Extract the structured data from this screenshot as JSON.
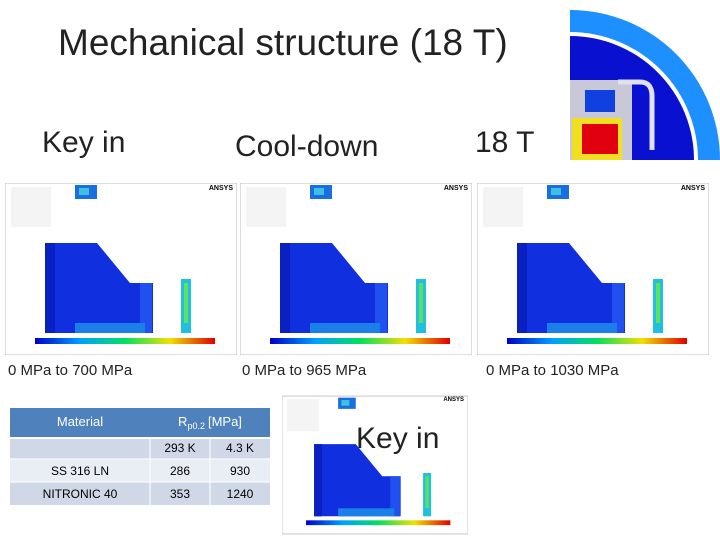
{
  "title": "Mechanical structure (18 T)",
  "stages": [
    {
      "label": "Key in",
      "range": "0 MPa to 700 MPa"
    },
    {
      "label": "Cool-down",
      "range": "0 MPa to 965 MPa"
    },
    {
      "label": "18 T",
      "range": "0 MPa to 1030 MPa"
    }
  ],
  "panel_logo": "ANSYS",
  "inset_label": "Key in",
  "table": {
    "header": {
      "material": "Material",
      "symbol": "R",
      "subscript": "p0.2",
      "unit": "[MPa]"
    },
    "subheader": [
      "293 K",
      "4.3 K"
    ],
    "rows": [
      [
        "SS 316 LN",
        "286",
        "930"
      ],
      [
        "NITRONIC 40",
        "353",
        "1240"
      ]
    ]
  }
}
